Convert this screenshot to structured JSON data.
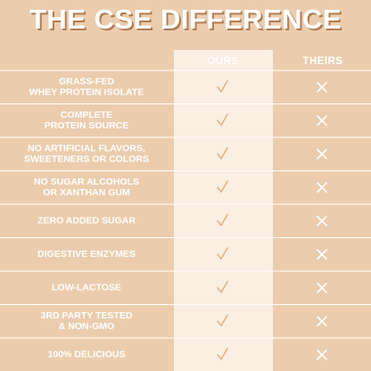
{
  "header": {
    "title": "THE CSE DIFFERENCE"
  },
  "table": {
    "columns": [
      "OURS",
      "THEIRS"
    ],
    "rows": [
      [
        "GRASS-FED",
        "WHEY PROTEIN ISOLATE"
      ],
      [
        "COMPLETE",
        "PROTEIN SOURCE"
      ],
      [
        "NO ARTIFICIAL FLAVORS,",
        "SWEETENERS OR COLORS"
      ],
      [
        "NO SUGAR ALCOHOLS",
        "OR XANTHAN GUM"
      ],
      [
        "ZERO ADDED SUGAR"
      ],
      [
        "DIGESTIVE ENZYMES"
      ],
      [
        "LOW-LACTOSE"
      ],
      [
        "3RD PARTY TESTED",
        "& NON-GMO"
      ],
      [
        "100% DELICIOUS"
      ]
    ]
  }
}
